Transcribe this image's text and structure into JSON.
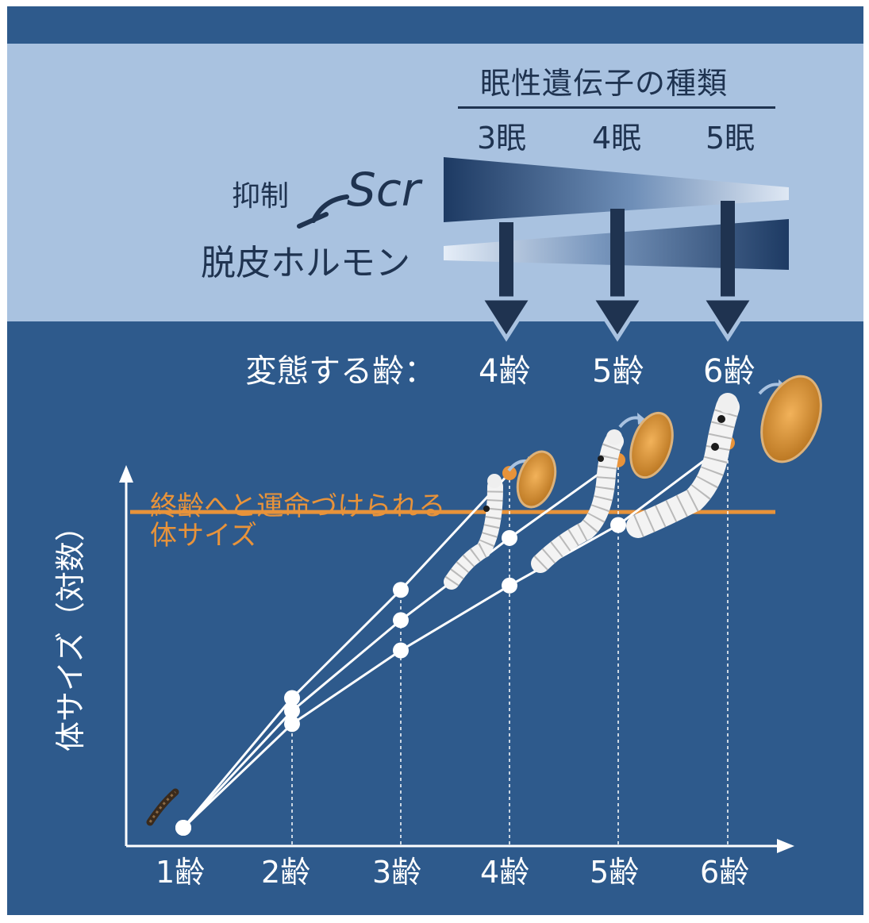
{
  "legend": {
    "title": "眠性遺伝子の種類",
    "genotypes": [
      "3眠",
      "4眠",
      "5眠"
    ]
  },
  "regulation": {
    "inhibit_label": "抑制",
    "gene_label": "Scr",
    "hormone_label": "脱皮ホルモン"
  },
  "metamorphosis": {
    "label": "変態する齢：",
    "stages": [
      "4齢",
      "5齢",
      "6齢"
    ]
  },
  "threshold": {
    "label_line1": "終齢へと運命づけられる",
    "label_line2": "体サイズ"
  },
  "colors": {
    "background": "#2e5a8c",
    "top_band": "#a9c2e0",
    "dark_text": "#1f3350",
    "threshold": "#e8933a",
    "lines": "#ffffff"
  },
  "icons": [
    "larva-icon",
    "silkworm-icon",
    "pupa-icon"
  ],
  "chart_data": {
    "type": "line",
    "title": "",
    "xlabel": "",
    "ylabel": "体サイズ（対数）",
    "categories": [
      "1齢",
      "2齢",
      "3齢",
      "4齢",
      "5齢",
      "6齢"
    ],
    "y_scale": "log",
    "threshold_value": 0.73,
    "series": [
      {
        "name": "3眠",
        "values": [
          0.0,
          0.3,
          0.55,
          0.82,
          null,
          null
        ]
      },
      {
        "name": "4眠",
        "values": [
          0.0,
          0.27,
          0.48,
          0.67,
          0.85,
          null
        ]
      },
      {
        "name": "5眠",
        "values": [
          0.0,
          0.24,
          0.41,
          0.56,
          0.7,
          0.89
        ]
      }
    ],
    "ylim": [
      0,
      1
    ]
  }
}
